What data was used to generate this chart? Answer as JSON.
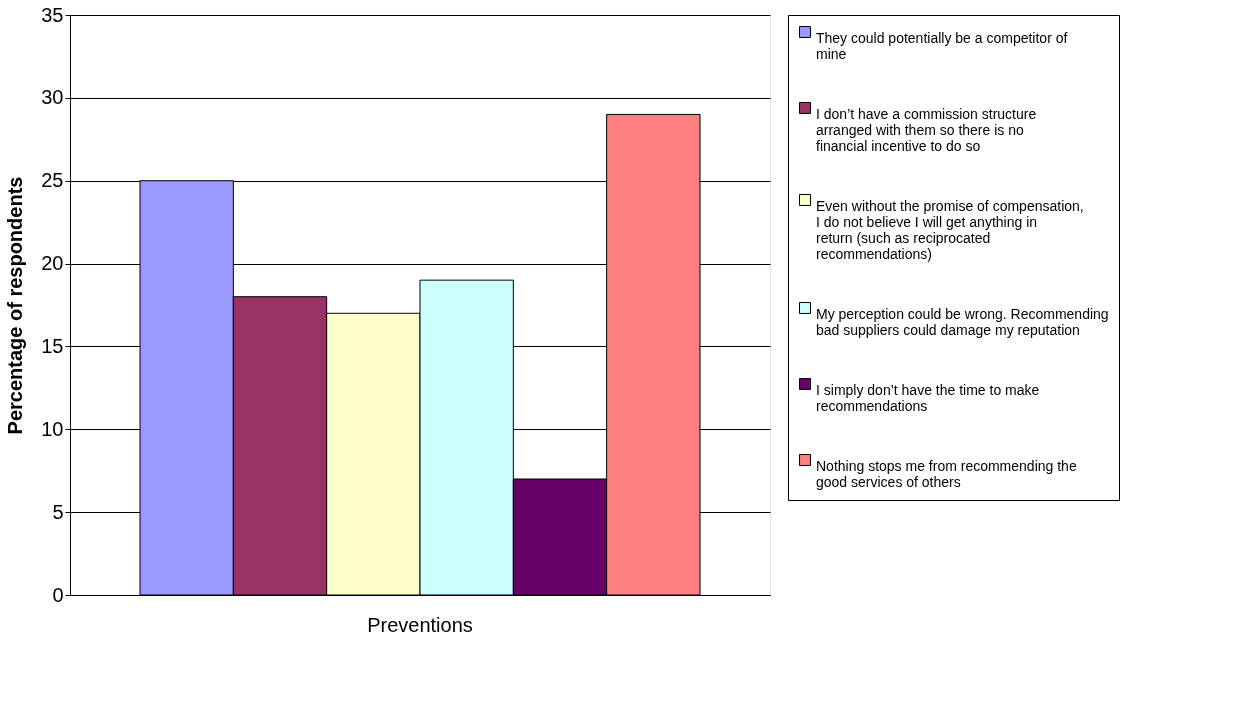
{
  "chart_data": {
    "type": "bar",
    "ylabel": "Percentage of respondents",
    "categories": [
      "Preventions"
    ],
    "ylim": [
      0,
      35
    ],
    "yticks": [
      0,
      5,
      10,
      15,
      20,
      25,
      30,
      35
    ],
    "grid": "y",
    "legend": "right",
    "series": [
      {
        "name": "They could potentially be a competitor of mine",
        "color": "#9999ff",
        "values": [
          25
        ]
      },
      {
        "name": "I don’t have a commission structure arranged with them so there is no financial incentive to do so",
        "color": "#993366",
        "values": [
          18
        ]
      },
      {
        "name": "Even without the promise of compensation, I do not believe I will get anything in return (such as reciprocated recommendations)",
        "color": "#ffffcc",
        "values": [
          17
        ]
      },
      {
        "name": "My perception could be wrong. Recommending bad suppliers could damage my reputation",
        "color": "#ccffff",
        "values": [
          19
        ]
      },
      {
        "name": "I simply don’t have the time to make recommendations",
        "color": "#660066",
        "values": [
          7
        ]
      },
      {
        "name": "Nothing stops me from recommending the good services of others",
        "color": "#ff8080",
        "values": [
          29
        ]
      }
    ]
  }
}
